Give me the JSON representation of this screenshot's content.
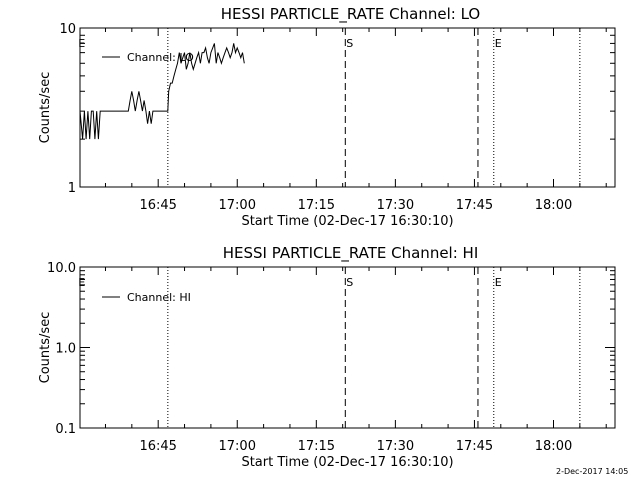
{
  "chart_data": [
    {
      "type": "line",
      "title": "HESSI PARTICLE_RATE Channel: LO",
      "xlabel": "Start Time (02-Dec-17 16:30:10)",
      "ylabel": "Counts/sec",
      "yscale": "log",
      "ylim": [
        1,
        10
      ],
      "xlim": [
        "16:30:10",
        "18:11:40"
      ],
      "x_ticks": [
        "16:45",
        "17:00",
        "17:15",
        "17:30",
        "17:45",
        "18:00"
      ],
      "y_ticks": [
        "1",
        "10"
      ],
      "legend": {
        "entries": [
          "Channel: LO"
        ],
        "placement": "top-left"
      },
      "grid": false,
      "markers": [
        {
          "time": "16:30:30",
          "label": "E",
          "style": "none"
        },
        {
          "time": "16:46:50",
          "label": "",
          "style": "dotted"
        },
        {
          "time": "17:20:30",
          "label": "S",
          "style": "dashed"
        },
        {
          "time": "17:45:40",
          "label": "",
          "style": "dashed"
        },
        {
          "time": "17:48:40",
          "label": "E",
          "style": "dotted"
        },
        {
          "time": "18:05:00",
          "label": "",
          "style": "dotted"
        }
      ],
      "series": [
        {
          "name": "Channel: LO",
          "x": [
            "16:30:10",
            "16:30:40",
            "16:31:00",
            "16:31:20",
            "16:31:40",
            "16:32:00",
            "16:32:20",
            "16:32:40",
            "16:33:00",
            "16:33:20",
            "16:33:40",
            "16:34:00",
            "16:34:30",
            "16:35:00",
            "16:36:00",
            "16:37:00",
            "16:38:00",
            "16:39:00",
            "16:39:20",
            "16:39:40",
            "16:40:00",
            "16:40:20",
            "16:40:40",
            "16:41:00",
            "16:41:20",
            "16:41:40",
            "16:42:00",
            "16:42:20",
            "16:42:40",
            "16:43:00",
            "16:43:20",
            "16:43:40",
            "16:44:00",
            "16:44:20",
            "16:44:40",
            "16:45:00",
            "16:46:00",
            "16:46:50",
            "16:47:00",
            "16:47:20",
            "16:47:40",
            "16:48:00",
            "16:48:20",
            "16:48:40",
            "16:49:00",
            "16:49:20",
            "16:49:40",
            "16:50:00",
            "16:50:20",
            "16:50:40",
            "16:51:00",
            "16:51:20",
            "16:51:40",
            "16:52:00",
            "16:52:20",
            "16:52:40",
            "16:53:00",
            "16:53:20",
            "16:53:40",
            "16:54:00",
            "16:54:20",
            "16:54:40",
            "16:55:00",
            "16:55:20",
            "16:55:40",
            "16:56:00",
            "16:56:20",
            "16:56:40",
            "16:57:00",
            "16:57:20",
            "16:57:40",
            "16:58:00",
            "16:58:20",
            "16:58:40",
            "16:59:00",
            "16:59:20",
            "16:59:40",
            "17:00:00",
            "17:00:20",
            "17:00:40",
            "17:01:00",
            "17:01:20"
          ],
          "y": [
            3,
            2,
            3,
            2,
            3,
            2,
            3,
            3,
            2,
            3,
            2,
            3,
            3,
            3,
            3,
            3,
            3,
            3,
            3,
            3.5,
            4,
            3.5,
            3,
            3.5,
            4,
            3.5,
            3,
            3.5,
            3,
            2.5,
            3,
            2.5,
            3,
            3,
            3,
            3,
            3,
            3,
            4,
            4.5,
            4.5,
            5,
            5.5,
            6,
            7,
            6,
            6.5,
            7,
            5.5,
            6,
            7,
            6,
            5.5,
            6,
            6.5,
            7,
            6,
            7,
            7,
            7.5,
            6.5,
            6,
            7,
            7.5,
            8,
            6,
            7,
            6.5,
            6,
            6.5,
            7,
            7.5,
            7,
            6.5,
            7,
            8,
            7,
            7.5,
            7,
            6.5,
            7,
            6
          ]
        }
      ]
    },
    {
      "type": "line",
      "title": "HESSI PARTICLE_RATE Channel: HI",
      "xlabel": "Start Time (02-Dec-17 16:30:10)",
      "ylabel": "Counts/sec",
      "yscale": "log",
      "ylim": [
        0.1,
        10
      ],
      "xlim": [
        "16:30:10",
        "18:11:40"
      ],
      "x_ticks": [
        "16:45",
        "17:00",
        "17:15",
        "17:30",
        "17:45",
        "18:00"
      ],
      "y_ticks": [
        "0.1",
        "1.0",
        "10.0"
      ],
      "legend": {
        "entries": [
          "Channel: HI"
        ],
        "placement": "top-left"
      },
      "grid": false,
      "markers": [
        {
          "time": "16:30:30",
          "label": "E",
          "style": "none"
        },
        {
          "time": "16:46:50",
          "label": "",
          "style": "dotted"
        },
        {
          "time": "17:20:30",
          "label": "S",
          "style": "dashed"
        },
        {
          "time": "17:45:40",
          "label": "",
          "style": "dashed"
        },
        {
          "time": "17:48:40",
          "label": "E",
          "style": "dotted"
        },
        {
          "time": "18:05:00",
          "label": "",
          "style": "dotted"
        }
      ],
      "series": [
        {
          "name": "Channel: HI",
          "x": [],
          "y": []
        }
      ]
    }
  ],
  "footer": {
    "timestamp": "2-Dec-2017 14:05"
  }
}
